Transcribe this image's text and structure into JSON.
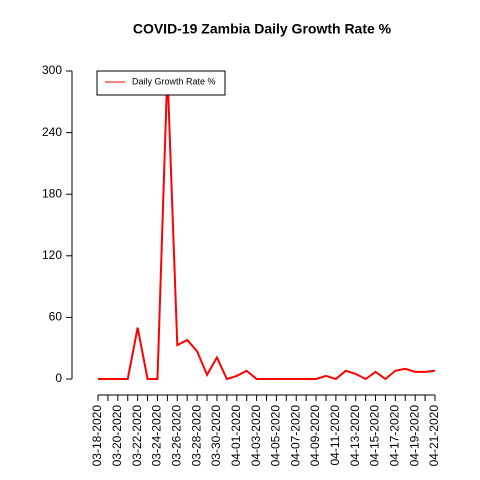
{
  "chart_data": {
    "type": "line",
    "title": "COVID-19 Zambia Daily Growth Rate %",
    "categories": [
      "03-18-2020",
      null,
      "03-20-2020",
      null,
      "03-22-2020",
      null,
      "03-24-2020",
      null,
      "03-26-2020",
      null,
      "03-28-2020",
      null,
      "03-30-2020",
      null,
      "04-01-2020",
      null,
      "04-03-2020",
      null,
      "04-05-2020",
      null,
      "04-07-2020",
      null,
      "04-09-2020",
      null,
      "04-11-2020",
      null,
      "04-13-2020",
      null,
      "04-15-2020",
      null,
      "04-17-2020",
      null,
      "04-19-2020",
      null,
      "04-21-2020"
    ],
    "series": [
      {
        "name": "Daily Growth Rate %",
        "color": "#ff0000",
        "values": [
          0,
          0,
          0,
          0,
          50,
          0,
          0,
          300,
          33,
          38,
          27,
          4,
          21,
          0,
          3,
          8,
          0,
          0,
          0,
          0,
          0,
          0,
          0,
          3,
          0,
          8,
          5,
          0,
          7,
          0,
          8,
          10,
          7,
          7,
          8
        ]
      }
    ],
    "ylim": [
      0,
      300
    ],
    "yticks": [
      0,
      60,
      120,
      180,
      240,
      300
    ],
    "grid": false,
    "legend": "top-left"
  }
}
